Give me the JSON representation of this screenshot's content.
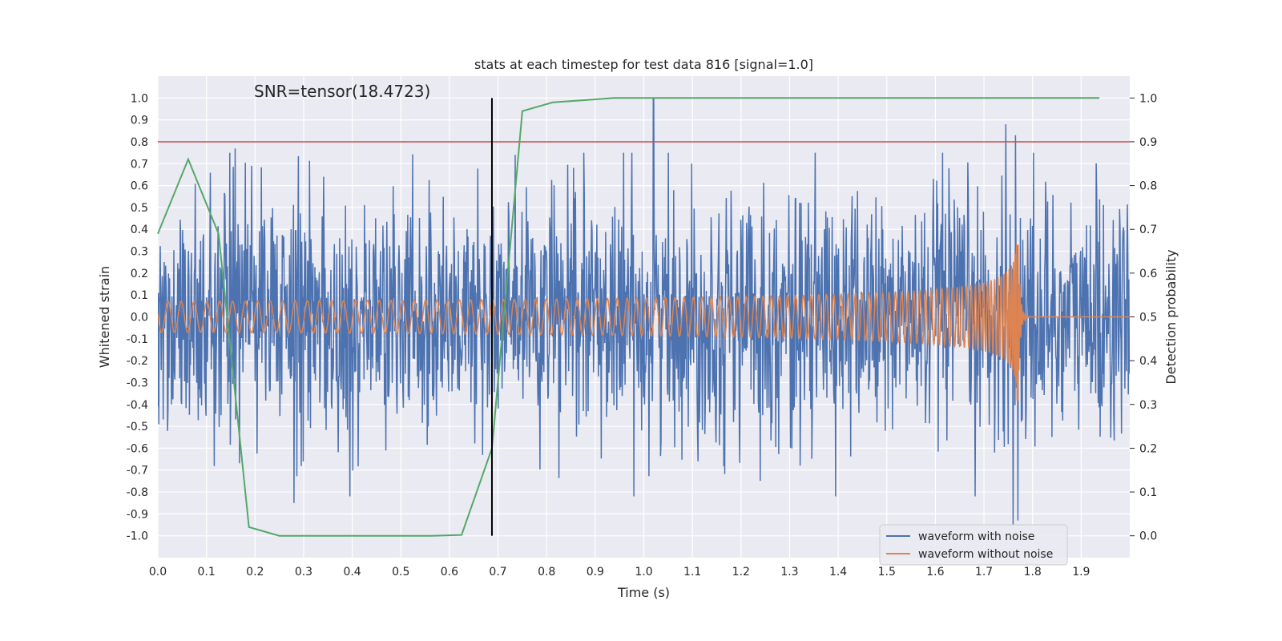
{
  "chart_data": {
    "type": "line",
    "title": "stats at each timestep for test data 816 [signal=1.0]",
    "annotation": "SNR=tensor(18.4723)",
    "xlabel": "Time (s)",
    "ylabel": "Whitened strain",
    "y2label": "Detection probability",
    "xlim": [
      0.0,
      2.0
    ],
    "ylim": [
      -1.1,
      1.1
    ],
    "y2lim": [
      -0.05,
      1.05
    ],
    "x_ticks": [
      0.0,
      0.1,
      0.2,
      0.3,
      0.4,
      0.5,
      0.6,
      0.7,
      0.8,
      0.9,
      1.0,
      1.1,
      1.2,
      1.3,
      1.4,
      1.5,
      1.6,
      1.7,
      1.8,
      1.9
    ],
    "y_ticks": [
      -1.0,
      -0.9,
      -0.8,
      -0.7,
      -0.6,
      -0.5,
      -0.4,
      -0.3,
      -0.2,
      -0.1,
      0.0,
      0.1,
      0.2,
      0.3,
      0.4,
      0.5,
      0.6,
      0.7,
      0.8,
      0.9,
      1.0
    ],
    "y2_ticks": [
      0.0,
      0.1,
      0.2,
      0.3,
      0.4,
      0.5,
      0.6,
      0.7,
      0.8,
      0.9,
      1.0
    ],
    "threshold": {
      "value": 0.9,
      "axis": "y2",
      "color": "#c44e52"
    },
    "vline": {
      "x": 0.6875,
      "y_from": -1.0,
      "y_to": 1.0,
      "color": "#000000"
    },
    "legend_position": "lower-right",
    "series": [
      {
        "name": "waveform with noise",
        "color": "#4c72b0",
        "axis": "y",
        "description": "noisy whitened strain, amplitude roughly within -0.95 to 1.0",
        "seed": 816,
        "amplitude": 0.28,
        "peaks": [
          [
            0.159,
            0.77
          ],
          [
            1.02,
            1.0
          ],
          [
            1.745,
            0.88
          ],
          [
            1.765,
            0.83
          ],
          [
            0.28,
            -0.85
          ],
          [
            1.76,
            -0.95
          ],
          [
            1.77,
            -0.93
          ]
        ]
      },
      {
        "name": "waveform without noise",
        "color": "#dd8452",
        "axis": "y",
        "description": "chirp signal, merger near t=1.77 s",
        "merger_time": 1.77,
        "amplitude_start": 0.07,
        "amplitude_peak": 0.4,
        "frequency_start_hz": 37
      },
      {
        "name": "detection probability",
        "color": "#55a868",
        "axis": "y2",
        "x": [
          0.0,
          0.0625,
          0.125,
          0.1875,
          0.25,
          0.3125,
          0.375,
          0.4375,
          0.5,
          0.5625,
          0.625,
          0.6875,
          0.75,
          0.8125,
          0.875,
          0.9375,
          1.0,
          1.0625,
          1.125,
          1.1875,
          1.25,
          1.3125,
          1.375,
          1.4375,
          1.5,
          1.5625,
          1.625,
          1.6875,
          1.75,
          1.8125,
          1.875,
          1.9375
        ],
        "y": [
          0.69,
          0.86,
          0.69,
          0.02,
          0.0,
          0.0,
          0.0,
          0.0,
          0.0,
          0.0,
          0.002,
          0.2,
          0.97,
          0.99,
          0.995,
          1.0,
          1.0,
          1.0,
          1.0,
          1.0,
          1.0,
          1.0,
          1.0,
          1.0,
          1.0,
          1.0,
          1.0,
          1.0,
          1.0,
          1.0,
          1.0,
          1.0
        ]
      }
    ]
  }
}
